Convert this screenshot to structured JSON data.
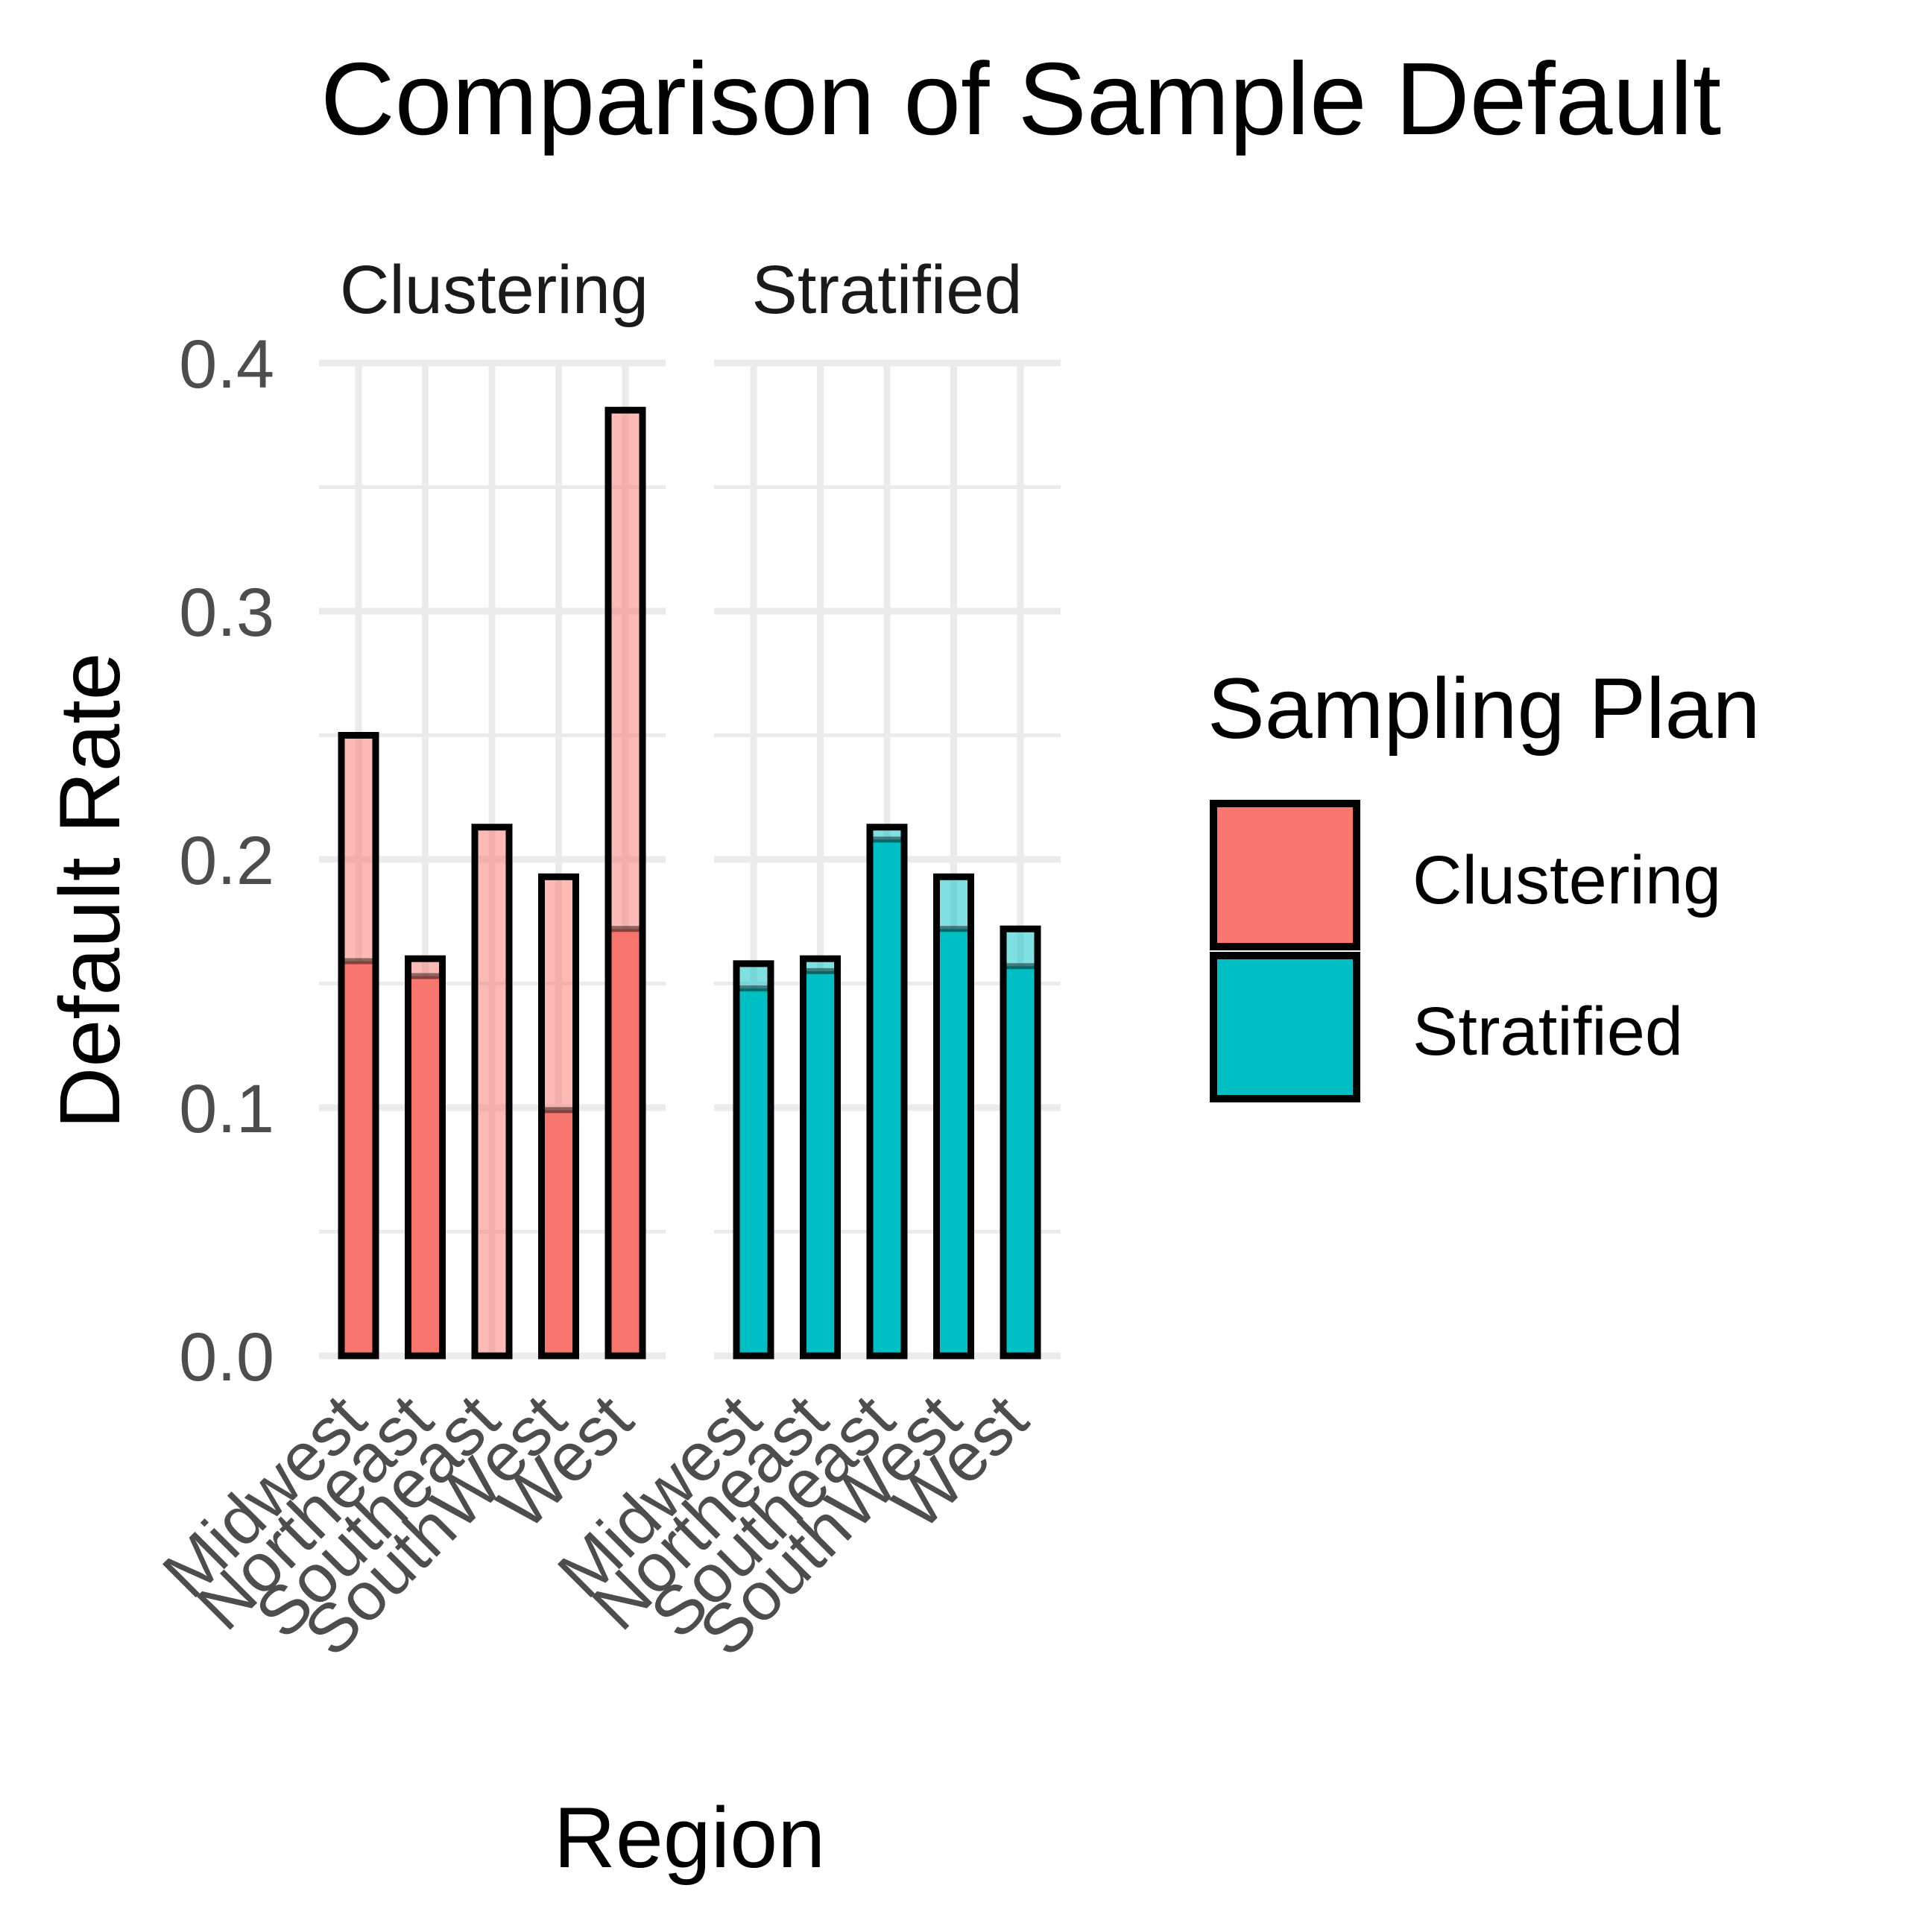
{
  "chart_data": {
    "type": "bar",
    "title": "Comparison of Sample Default",
    "xlabel": "Region",
    "ylabel": "Default Rate",
    "ylim": [
      0,
      0.4
    ],
    "yticks": [
      "0.0",
      "0.1",
      "0.2",
      "0.3",
      "0.4"
    ],
    "grid": true,
    "legend": {
      "title": "Sampling Plan",
      "placement": "right"
    },
    "colors": {
      "Clustering": "#F8766D",
      "Stratified": "#00BFC4"
    },
    "categories": [
      "Midwest",
      "Northeast",
      "Southeast",
      "SouthWest",
      "West"
    ],
    "facets": [
      {
        "name": "Clustering",
        "series": [
          {
            "name": "Clustering",
            "values": [
              0.25,
              0.16,
              0.213,
              0.193,
              0.381
            ]
          },
          {
            "name": "Clustering",
            "values": [
              0.159,
              0.153,
              0.0,
              0.099,
              0.172
            ]
          }
        ]
      },
      {
        "name": "Stratified",
        "series": [
          {
            "name": "Stratified",
            "values": [
              0.158,
              0.16,
              0.213,
              0.193,
              0.172
            ]
          },
          {
            "name": "Stratified",
            "values": [
              0.148,
              0.155,
              0.208,
              0.172,
              0.157
            ]
          }
        ]
      }
    ]
  }
}
